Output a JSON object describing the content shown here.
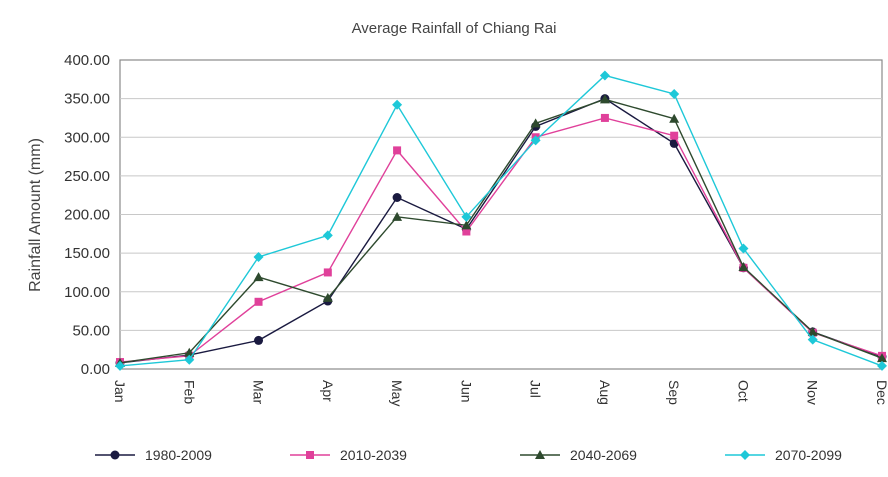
{
  "chart_data": {
    "type": "line",
    "title": "Average Rainfall of Chiang Rai",
    "xlabel": "",
    "ylabel": "Rainfall Amount (mm)",
    "categories": [
      "Jan",
      "Feb",
      "Mar",
      "Apr",
      "May",
      "Jun",
      "Jul",
      "Aug",
      "Sep",
      "Oct",
      "Nov",
      "Dec"
    ],
    "ylim": [
      0,
      400
    ],
    "yticks": [
      "0.00",
      "50.00",
      "100.00",
      "150.00",
      "200.00",
      "250.00",
      "300.00",
      "350.00",
      "400.00"
    ],
    "grid": true,
    "legend_position": "bottom",
    "series": [
      {
        "name": "1980-2009",
        "color": "#1a1a40",
        "marker": "circle",
        "values": [
          8,
          18,
          37,
          88,
          222,
          181,
          314,
          350,
          292,
          131,
          48,
          16
        ]
      },
      {
        "name": "2010-2039",
        "color": "#e0409a",
        "marker": "square",
        "values": [
          9,
          17,
          87,
          125,
          283,
          178,
          300,
          325,
          302,
          131,
          47,
          17
        ]
      },
      {
        "name": "2040-2069",
        "color": "#2e4a2e",
        "marker": "triangle",
        "values": [
          8,
          21,
          119,
          92,
          197,
          186,
          318,
          349,
          324,
          132,
          48,
          14
        ]
      },
      {
        "name": "2070-2099",
        "color": "#1ec8d8",
        "marker": "diamond",
        "values": [
          4,
          12,
          145,
          173,
          342,
          197,
          296,
          380,
          356,
          156,
          38,
          4
        ]
      }
    ]
  }
}
